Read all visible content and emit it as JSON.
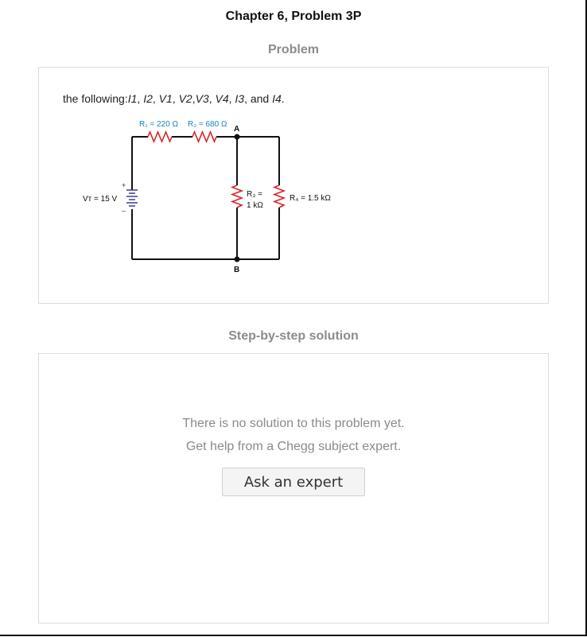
{
  "header": {
    "title": "Chapter 6, Problem 3P"
  },
  "problem": {
    "heading": "Problem",
    "text_prefix": "the following:",
    "variables": [
      "I1",
      ", ",
      "I2",
      ", ",
      "V1",
      ", ",
      "V2",
      ",",
      "V3",
      ", ",
      "V4",
      ", ",
      "I3",
      ", and ",
      "I4",
      "."
    ]
  },
  "circuit": {
    "r1_label": "R₁ = 220 Ω",
    "r2_label": "R₂ = 680 Ω",
    "node_a": "A",
    "node_b": "B",
    "vt_label": "Vᴛ = 15 V",
    "plus": "+",
    "minus": "–",
    "r3_label_1": "R₃ =",
    "r3_label_2": "1 kΩ",
    "r4_label": "R₄ = 1.5 kΩ",
    "colors": {
      "wire": "#111111",
      "resistor": "#d9262f",
      "battery": "#3a3a8c",
      "label_blue": "#1a7fbf"
    }
  },
  "solution": {
    "heading": "Step-by-step solution",
    "line1": "There is no solution to this problem yet.",
    "line2": "Get help from a Chegg subject expert.",
    "button_label": "Ask an expert"
  }
}
